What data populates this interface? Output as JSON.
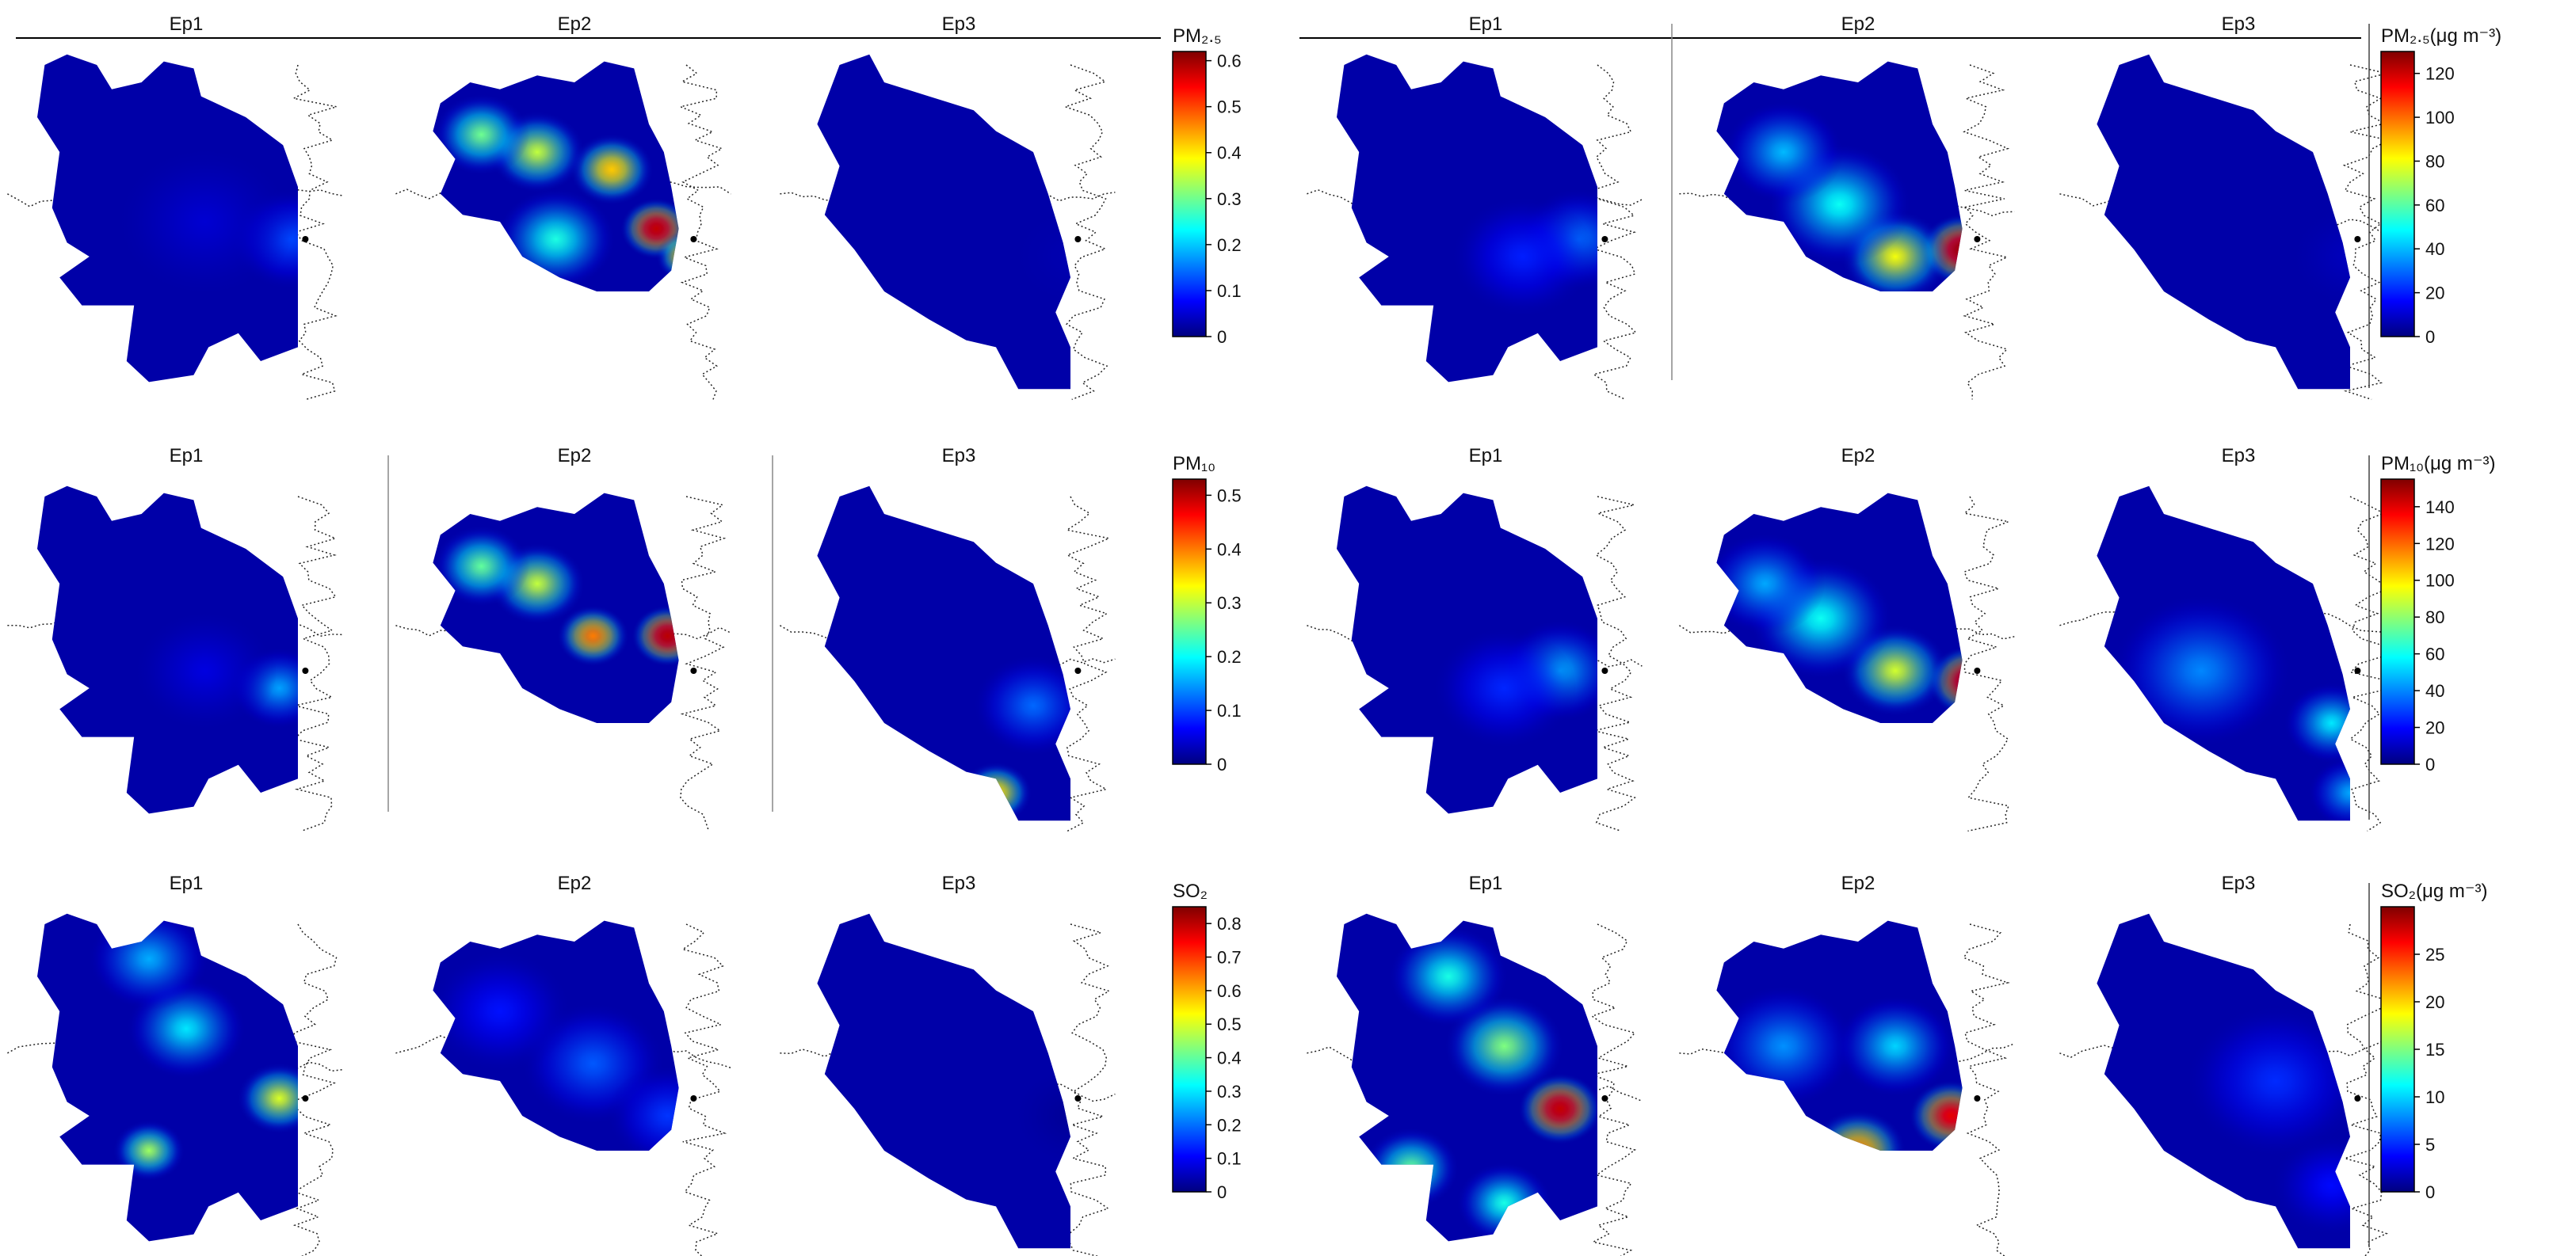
{
  "colormap": [
    "#00007f",
    "#0000ff",
    "#007fff",
    "#00ffff",
    "#7fff7f",
    "#ffff00",
    "#ff7f00",
    "#ff0000",
    "#7f0000"
  ],
  "chart_data": [
    {
      "type": "heatmap",
      "row": 1,
      "column": "left",
      "panels": [
        "Ep1",
        "Ep2",
        "Ep3"
      ],
      "colorbar": {
        "label": "PM₂.₅",
        "ticks": [
          "0",
          "0.1",
          "0.2",
          "0.3",
          "0.4",
          "0.5",
          "0.6"
        ],
        "range": [
          0,
          0.62
        ]
      },
      "hotspots": [
        [
          {
            "x": 0.78,
            "y": 0.55,
            "v": 0.12,
            "s": 0.1
          },
          {
            "x": 0.55,
            "y": 0.5,
            "v": 0.05,
            "s": 0.15
          }
        ],
        [
          {
            "x": 0.72,
            "y": 0.52,
            "v": 0.58,
            "s": 0.06
          },
          {
            "x": 0.6,
            "y": 0.35,
            "v": 0.42,
            "s": 0.07
          },
          {
            "x": 0.4,
            "y": 0.3,
            "v": 0.35,
            "s": 0.08
          },
          {
            "x": 0.25,
            "y": 0.25,
            "v": 0.3,
            "s": 0.08
          },
          {
            "x": 0.45,
            "y": 0.55,
            "v": 0.25,
            "s": 0.1
          },
          {
            "x": 0.8,
            "y": 0.6,
            "v": 0.45,
            "s": 0.05
          }
        ],
        [
          {
            "x": 0.8,
            "y": 0.6,
            "v": 0.03,
            "s": 0.1
          }
        ]
      ]
    },
    {
      "type": "heatmap",
      "row": 1,
      "column": "right",
      "panels": [
        "Ep1",
        "Ep2",
        "Ep3"
      ],
      "colorbar": {
        "label": "PM₂.₅(μg m⁻³)",
        "ticks": [
          "0",
          "20",
          "40",
          "60",
          "80",
          "100",
          "120"
        ],
        "range": [
          0,
          130
        ]
      },
      "hotspots": [
        [
          {
            "x": 0.75,
            "y": 0.55,
            "v": 30,
            "s": 0.1
          },
          {
            "x": 0.6,
            "y": 0.6,
            "v": 20,
            "s": 0.12
          }
        ],
        [
          {
            "x": 0.78,
            "y": 0.58,
            "v": 125,
            "s": 0.07
          },
          {
            "x": 0.6,
            "y": 0.6,
            "v": 80,
            "s": 0.09
          },
          {
            "x": 0.45,
            "y": 0.45,
            "v": 50,
            "s": 0.12
          },
          {
            "x": 0.3,
            "y": 0.3,
            "v": 40,
            "s": 0.1
          }
        ],
        [
          {
            "x": 0.8,
            "y": 0.6,
            "v": 8,
            "s": 0.1
          }
        ]
      ]
    },
    {
      "type": "heatmap",
      "row": 2,
      "column": "left",
      "panels": [
        "Ep1",
        "Ep2",
        "Ep3"
      ],
      "colorbar": {
        "label": "PM₁₀",
        "ticks": [
          "0",
          "0.1",
          "0.2",
          "0.3",
          "0.4",
          "0.5"
        ],
        "range": [
          0,
          0.53
        ]
      },
      "hotspots": [
        [
          {
            "x": 0.75,
            "y": 0.6,
            "v": 0.15,
            "s": 0.08
          },
          {
            "x": 0.55,
            "y": 0.55,
            "v": 0.05,
            "s": 0.12
          }
        ],
        [
          {
            "x": 0.75,
            "y": 0.45,
            "v": 0.5,
            "s": 0.06
          },
          {
            "x": 0.55,
            "y": 0.45,
            "v": 0.4,
            "s": 0.06
          },
          {
            "x": 0.4,
            "y": 0.3,
            "v": 0.3,
            "s": 0.08
          },
          {
            "x": 0.25,
            "y": 0.25,
            "v": 0.25,
            "s": 0.08
          },
          {
            "x": 0.85,
            "y": 0.6,
            "v": 0.35,
            "s": 0.05
          }
        ],
        [
          {
            "x": 0.3,
            "y": 0.85,
            "v": 0.45,
            "s": 0.06
          },
          {
            "x": 0.2,
            "y": 0.75,
            "v": 0.3,
            "s": 0.07
          },
          {
            "x": 0.6,
            "y": 0.9,
            "v": 0.35,
            "s": 0.06
          },
          {
            "x": 0.7,
            "y": 0.65,
            "v": 0.12,
            "s": 0.1
          }
        ]
      ]
    },
    {
      "type": "heatmap",
      "row": 2,
      "column": "right",
      "panels": [
        "Ep1",
        "Ep2",
        "Ep3"
      ],
      "colorbar": {
        "label": "PM₁₀(μg m⁻³)",
        "ticks": [
          "0",
          "20",
          "40",
          "60",
          "80",
          "100",
          "120",
          "140"
        ],
        "range": [
          0,
          155
        ]
      },
      "hotspots": [
        [
          {
            "x": 0.7,
            "y": 0.55,
            "v": 45,
            "s": 0.1
          },
          {
            "x": 0.55,
            "y": 0.6,
            "v": 25,
            "s": 0.12
          }
        ],
        [
          {
            "x": 0.8,
            "y": 0.58,
            "v": 150,
            "s": 0.07
          },
          {
            "x": 0.6,
            "y": 0.55,
            "v": 90,
            "s": 0.09
          },
          {
            "x": 0.4,
            "y": 0.4,
            "v": 60,
            "s": 0.12
          },
          {
            "x": 0.25,
            "y": 0.3,
            "v": 45,
            "s": 0.1
          }
        ],
        [
          {
            "x": 0.75,
            "y": 0.7,
            "v": 55,
            "s": 0.08
          },
          {
            "x": 0.4,
            "y": 0.55,
            "v": 40,
            "s": 0.15
          },
          {
            "x": 0.8,
            "y": 0.9,
            "v": 45,
            "s": 0.07
          }
        ]
      ]
    },
    {
      "type": "heatmap",
      "row": 3,
      "column": "left",
      "panels": [
        "Ep1",
        "Ep2",
        "Ep3"
      ],
      "colorbar": {
        "label": "SO₂",
        "ticks": [
          "0",
          "0.1",
          "0.2",
          "0.3",
          "0.4",
          "0.5",
          "0.6",
          "0.7",
          "0.8"
        ],
        "range": [
          0,
          0.85
        ]
      },
      "hotspots": [
        [
          {
            "x": 0.25,
            "y": 0.88,
            "v": 0.85,
            "s": 0.04
          },
          {
            "x": 0.4,
            "y": 0.7,
            "v": 0.45,
            "s": 0.06
          },
          {
            "x": 0.75,
            "y": 0.55,
            "v": 0.5,
            "s": 0.07
          },
          {
            "x": 0.5,
            "y": 0.35,
            "v": 0.3,
            "s": 0.1
          },
          {
            "x": 0.4,
            "y": 0.15,
            "v": 0.25,
            "s": 0.1
          }
        ],
        [
          {
            "x": 0.55,
            "y": 0.45,
            "v": 0.18,
            "s": 0.12
          },
          {
            "x": 0.3,
            "y": 0.3,
            "v": 0.12,
            "s": 0.12
          },
          {
            "x": 0.75,
            "y": 0.6,
            "v": 0.15,
            "s": 0.1
          }
        ],
        [
          {
            "x": 0.8,
            "y": 0.6,
            "v": 0.02,
            "s": 0.1
          }
        ]
      ]
    },
    {
      "type": "heatmap",
      "row": 3,
      "column": "right",
      "panels": [
        "Ep1",
        "Ep2",
        "Ep3"
      ],
      "colorbar": {
        "label": "SO₂(μg m⁻³)",
        "ticks": [
          "0",
          "5",
          "10",
          "15",
          "20",
          "25"
        ],
        "range": [
          0,
          30
        ]
      },
      "hotspots": [
        [
          {
            "x": 0.7,
            "y": 0.58,
            "v": 28,
            "s": 0.07
          },
          {
            "x": 0.55,
            "y": 0.4,
            "v": 15,
            "s": 0.1
          },
          {
            "x": 0.4,
            "y": 0.2,
            "v": 12,
            "s": 0.1
          },
          {
            "x": 0.3,
            "y": 0.75,
            "v": 14,
            "s": 0.08
          },
          {
            "x": 0.55,
            "y": 0.85,
            "v": 12,
            "s": 0.08
          }
        ],
        [
          {
            "x": 0.75,
            "y": 0.6,
            "v": 27,
            "s": 0.07
          },
          {
            "x": 0.5,
            "y": 0.7,
            "v": 22,
            "s": 0.08
          },
          {
            "x": 0.3,
            "y": 0.4,
            "v": 8,
            "s": 0.12
          },
          {
            "x": 0.6,
            "y": 0.4,
            "v": 10,
            "s": 0.1
          }
        ],
        [
          {
            "x": 0.6,
            "y": 0.5,
            "v": 5,
            "s": 0.15
          },
          {
            "x": 0.75,
            "y": 0.8,
            "v": 4,
            "s": 0.1
          }
        ]
      ]
    }
  ]
}
